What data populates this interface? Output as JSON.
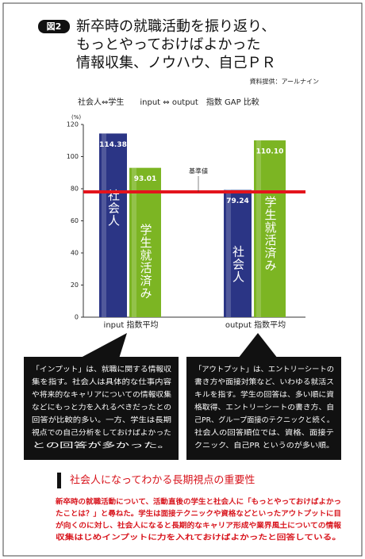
{
  "header": {
    "badge": "図2",
    "title_lines": [
      "新卒時の就職活動を振り返り、",
      "もっとやっておけばよかった",
      "情報収集、ノウハウ、自己ＰＲ"
    ],
    "source": "資料提供：アールナイン"
  },
  "chart_data": {
    "type": "bar",
    "subtitle": "社会人⇔学生　　input ⇔ output　指数 GAP 比較",
    "y_unit": "(%)",
    "categories": [
      "input 指数平均",
      "output 指数平均"
    ],
    "series": [
      {
        "name": "社会人",
        "color": "#2b3585",
        "values": [
          114.38,
          79.24
        ],
        "value_labels": [
          "114.38",
          "79.24"
        ]
      },
      {
        "name": "学生就活済み",
        "color": "#7cb523",
        "values": [
          93.01,
          110.1
        ],
        "value_labels": [
          "93.01",
          "110.10"
        ]
      }
    ],
    "ylim": [
      0,
      120
    ],
    "yticks": [
      0,
      20,
      40,
      60,
      80,
      100,
      120
    ],
    "reference_line": {
      "value": 78,
      "label": "基準値",
      "color": "#e3141c"
    }
  },
  "callouts": [
    {
      "lines": [
        "「インプット」は、就職に関する情報収",
        "集を指す。社会人は具体的な仕事内容",
        "や将来的なキャリアについての情報収集",
        "などにもっと力を入れるべきだったとの",
        "回答が比較的多い。一方、学生は長期",
        "視点での自己分析をしておけばよかった",
        "との回答が多かった。"
      ]
    },
    {
      "lines": [
        "「アウトプット」は、エントリーシートの",
        "書き方や面接対策など、いわゆる就活ス",
        "キルを指す。学生の回答は、多い順に資",
        "格取得、エントリーシートの書き方、自",
        "己PR、グループ面接のテクニックと続く。",
        "社会人の回答順位では、資格、面接テ",
        "クニック、自己PR というのが多い順。"
      ]
    }
  ],
  "section": {
    "heading": "社会人になってわかる長期視点の重要性",
    "paragraph_lines": [
      "新卒時の就職活動について、活動直後の学生と社会人に「もっとやっておけばよかっ",
      "たことは？」と尋ねた。学生は面接テクニックや資格などといったアウトプットに目",
      "が向くのに対し、社会人になると長期的なキャリア形成や業界風土についての情報",
      "収集はじめインプットに力を入れておけばよかったと回答している。"
    ]
  }
}
